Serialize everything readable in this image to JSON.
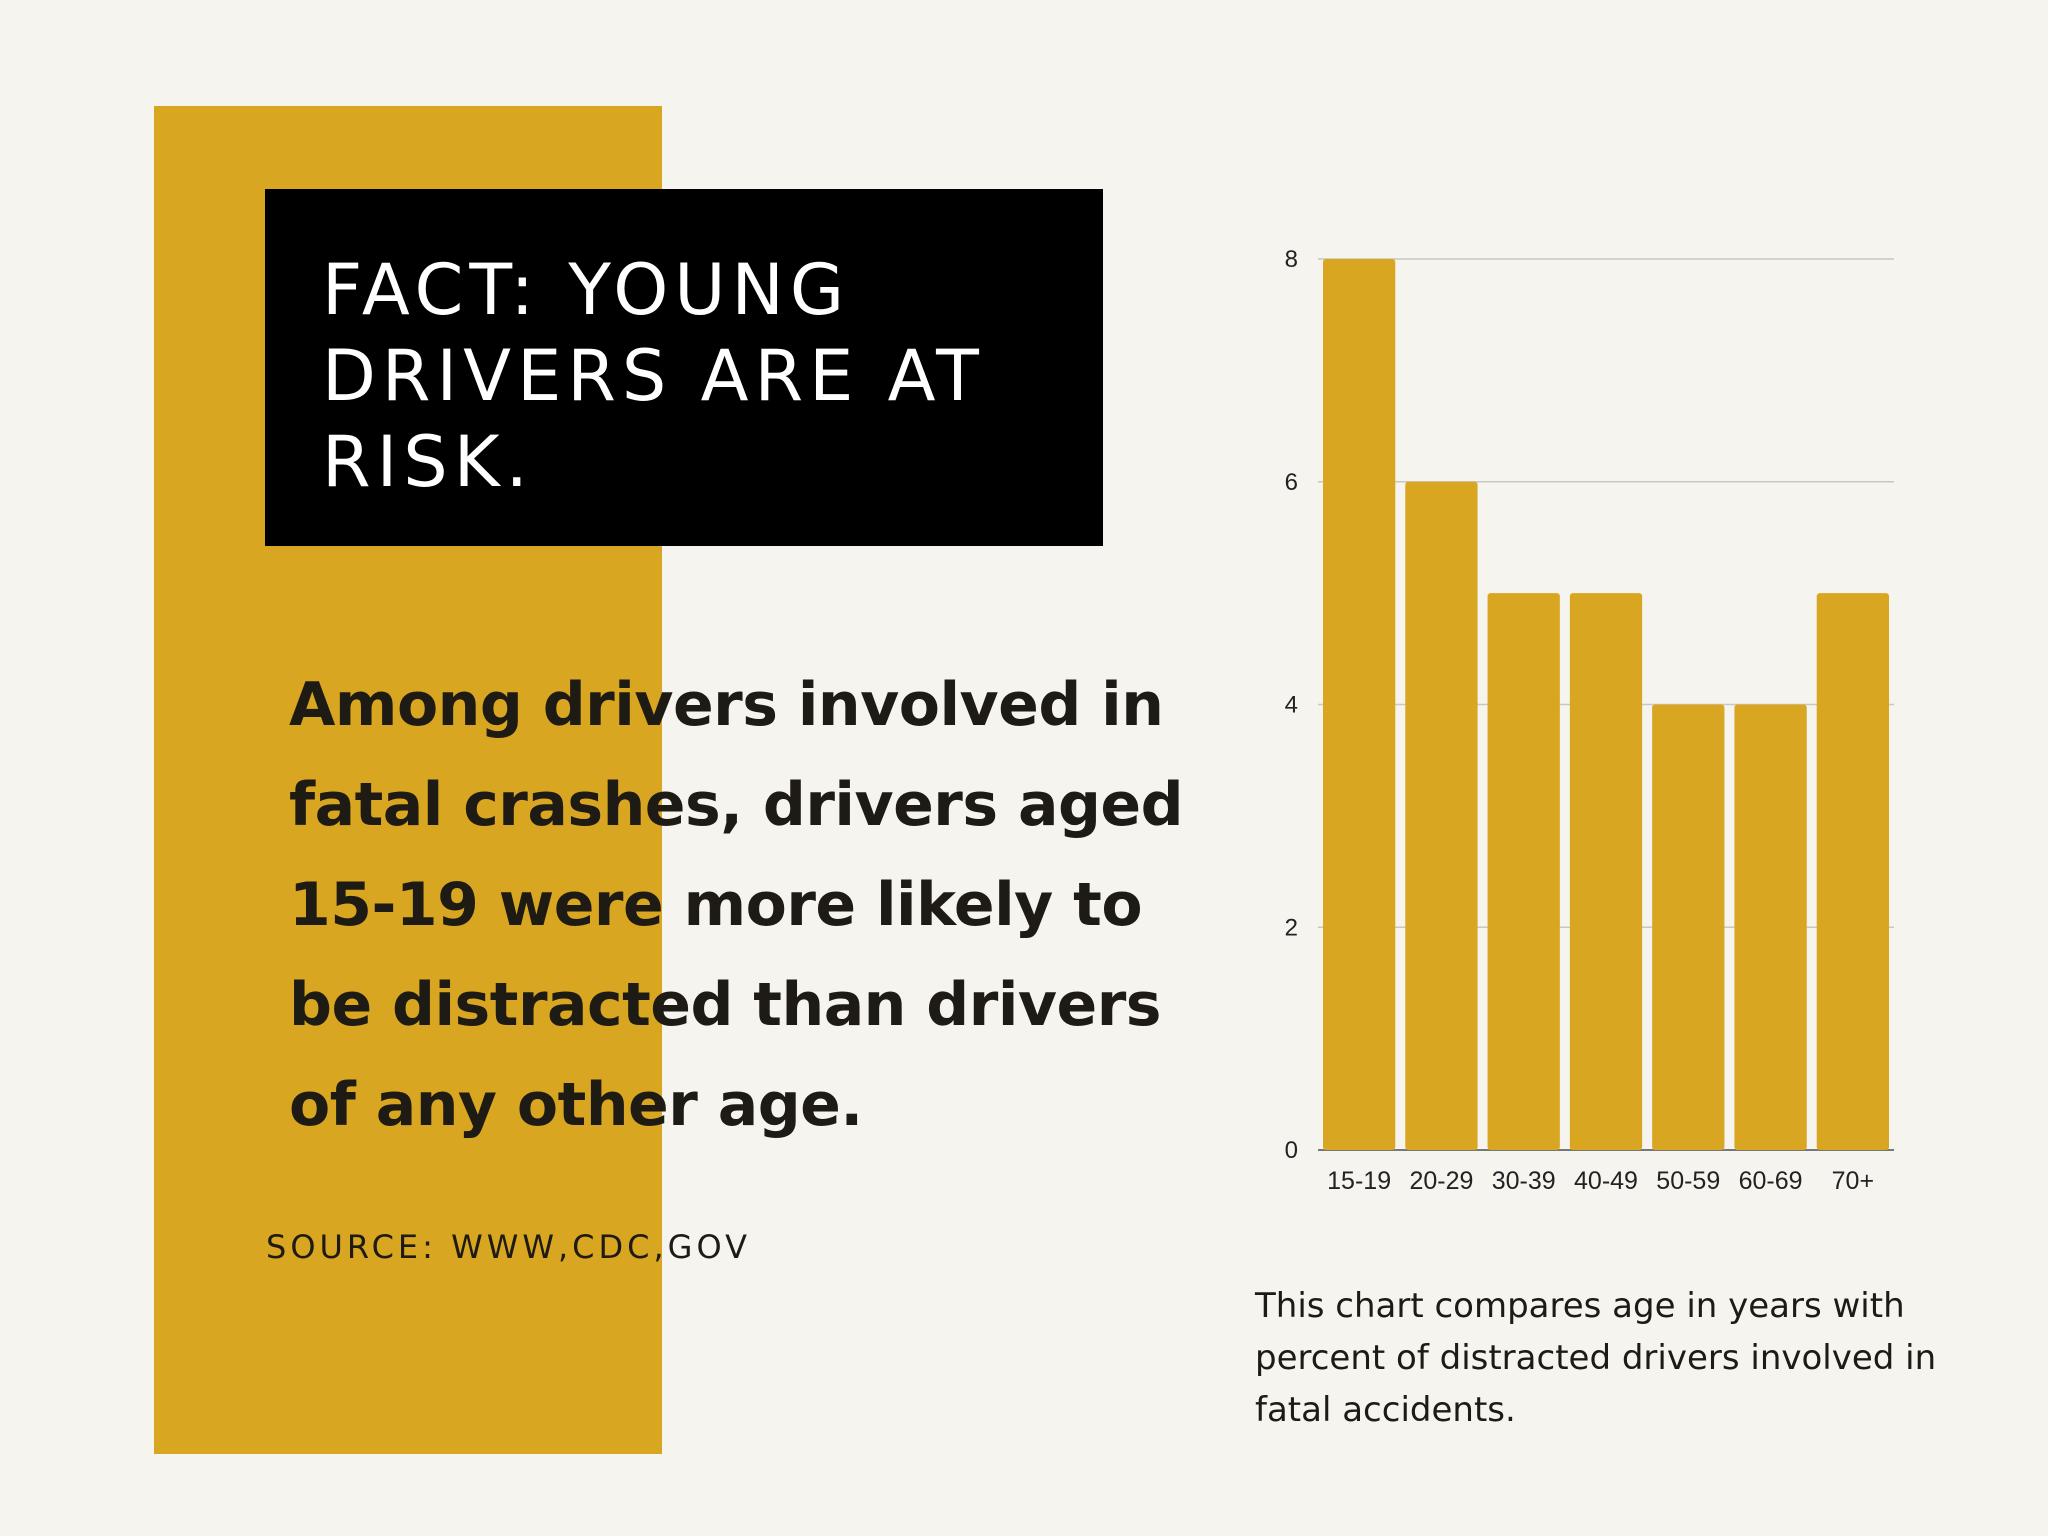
{
  "title": "FACT: YOUNG DRIVERS ARE AT RISK.",
  "body": "Among drivers involved in fatal crashes, drivers aged 15-19 were more likely to be distracted than drivers of any other age.",
  "source": "SOURCE: WWW,CDC,GOV",
  "caption": "This chart compares age in years with percent of distracted drivers involved in fatal accidents.",
  "colors": {
    "accent": "#d9a621",
    "title_bg": "#000000",
    "background": "#f5f4ef"
  },
  "chart_data": {
    "type": "bar",
    "categories": [
      "15-19",
      "20-29",
      "30-39",
      "40-49",
      "50-59",
      "60-69",
      "70+"
    ],
    "values": [
      8,
      6,
      5,
      5,
      4,
      4,
      5
    ],
    "ylim": [
      0,
      8
    ],
    "yticks": [
      0,
      2,
      4,
      6,
      8
    ],
    "grid": true,
    "bar_color": "#d9a621"
  }
}
